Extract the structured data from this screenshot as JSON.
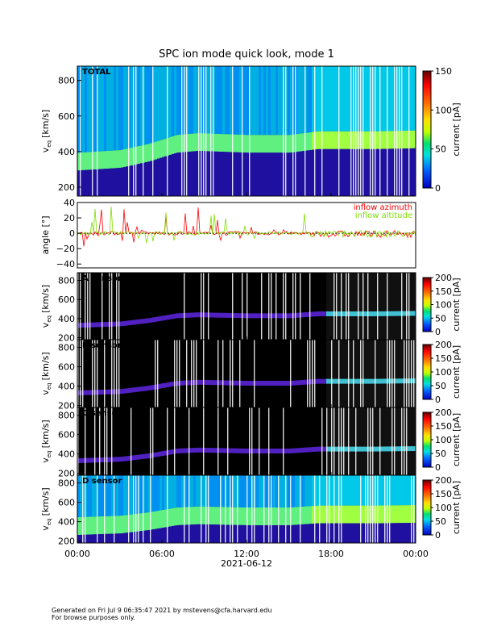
{
  "title": "SPC ion mode quick look, mode 1",
  "footer": {
    "line1": "Generated on Fri Jul  9 06:35:47 2021 by mstevens@cfa.harvard.edu",
    "line2": "For browse purposes only."
  },
  "time_axis": {
    "ticks": [
      "00:00",
      "06:00",
      "12:00",
      "18:00",
      "00:00"
    ],
    "date_label": "2021-06-12"
  },
  "chart_data": [
    {
      "type": "heatmap",
      "panel": "TOTAL",
      "panel_label": "TOTAL",
      "ylabel_main": "v",
      "ylabel_sub": "eq",
      "ylabel_unit": "[km/s]",
      "ylim": [
        150,
        880
      ],
      "yticks": [
        "800",
        "600",
        "400",
        "200"
      ],
      "colorbar": {
        "label": "current [pA]",
        "range": [
          0,
          150
        ],
        "ticks": [
          "150",
          "100",
          "50",
          "0"
        ]
      },
      "x": [
        "2021-06-12 00:00",
        "2021-06-12 03:00",
        "2021-06-12 05:00",
        "2021-06-12 07:00",
        "2021-06-12 08:30",
        "2021-06-12 12:00",
        "2021-06-12 15:00",
        "2021-06-12 17:00",
        "2021-06-12 18:00",
        "2021-06-12 21:00",
        "2021-06-13 00:00"
      ],
      "velocity_peak": [
        330,
        345,
        380,
        430,
        440,
        430,
        430,
        450,
        450,
        450,
        455
      ]
    },
    {
      "type": "line",
      "panel": "angle",
      "ylabel": "angle [°]",
      "ylim": [
        -45,
        40
      ],
      "yticks": [
        "40",
        "20",
        "0",
        "−20",
        "−40"
      ],
      "series": [
        {
          "name": "inflow azimuth",
          "color": "#ff0000"
        },
        {
          "name": "inflow altitude",
          "color": "#80dd00"
        }
      ]
    },
    {
      "type": "heatmap",
      "panel": "A sensor",
      "panel_label": "A sensor",
      "ylim": [
        180,
        880
      ],
      "yticks": [
        "800",
        "600",
        "400",
        "200"
      ],
      "colorbar": {
        "label": "current [pA]",
        "range": [
          0,
          200
        ],
        "ticks": [
          "200",
          "150",
          "100",
          "50",
          "0"
        ]
      }
    },
    {
      "type": "heatmap",
      "panel": "B sensor",
      "panel_label": "B sensor",
      "ylim": [
        180,
        880
      ],
      "yticks": [
        "800",
        "600",
        "400",
        "200"
      ],
      "colorbar": {
        "label": "current [pA]",
        "range": [
          0,
          200
        ],
        "ticks": [
          "200",
          "150",
          "100",
          "50",
          "0"
        ]
      }
    },
    {
      "type": "heatmap",
      "panel": "C sensor",
      "panel_label": "C sensor",
      "ylim": [
        180,
        880
      ],
      "yticks": [
        "800",
        "600",
        "400",
        "200"
      ],
      "colorbar": {
        "label": "current [pA]",
        "range": [
          0,
          200
        ],
        "ticks": [
          "200",
          "150",
          "100",
          "50",
          "0"
        ]
      }
    },
    {
      "type": "heatmap",
      "panel": "D sensor",
      "panel_label": "D sensor",
      "ylim": [
        180,
        880
      ],
      "yticks": [
        "800",
        "600",
        "400",
        "200"
      ],
      "colorbar": {
        "label": "current [pA]",
        "range": [
          0,
          200
        ],
        "ticks": [
          "200",
          "150",
          "100",
          "50",
          "0"
        ]
      }
    }
  ]
}
